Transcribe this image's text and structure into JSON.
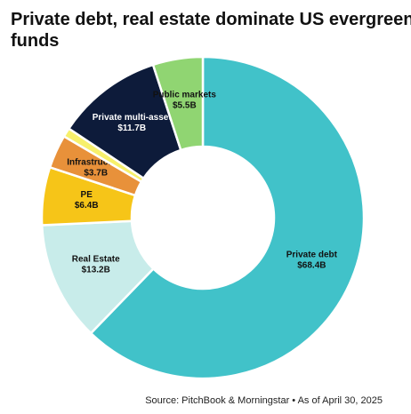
{
  "chart_data": {
    "type": "donut",
    "title": [
      "Private debt, real estate dominate US evergreen",
      "funds"
    ],
    "categories": [
      "Private debt",
      "Real Estate",
      "PE",
      "Infrastructure",
      null,
      "Private multi-asset",
      "Public markets"
    ],
    "values": [
      68.4,
      13.2,
      6.4,
      3.7,
      1.0,
      11.7,
      5.5
    ],
    "value_labels": [
      "$68.4B",
      "$13.2B",
      "$6.4B",
      "$3.7B",
      null,
      "$11.7B",
      "$5.5B"
    ],
    "colors": [
      "#41c2c9",
      "#c8ecea",
      "#f6c518",
      "#e8913a",
      "#f7f06b",
      "#0d1b3a",
      "#90d572"
    ],
    "source": "Source: PitchBook & Morningstar • As of April 30, 2025"
  }
}
